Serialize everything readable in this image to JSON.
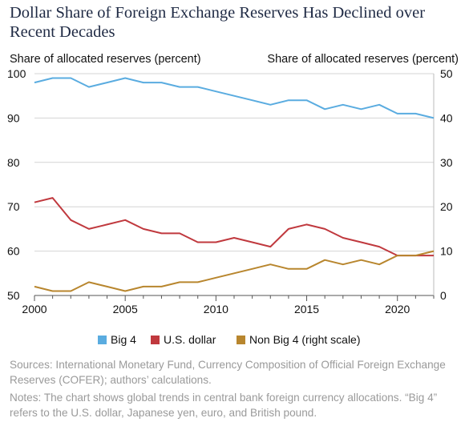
{
  "header": {
    "title": "Dollar Share of Foreign Exchange Reserves Has Declined over Recent Decades"
  },
  "chart_data": {
    "type": "line",
    "title": "Dollar Share of Foreign Exchange Reserves Has Declined over Recent Decades",
    "ylabel_left": "Share of allocated reserves (percent)",
    "ylabel_right": "Share of allocated reserves (percent)",
    "ylim_left": [
      50,
      100
    ],
    "ylim_right": [
      0,
      50
    ],
    "left_ticks": [
      "100",
      "90",
      "80",
      "70",
      "60",
      "50"
    ],
    "right_ticks": [
      "50",
      "40",
      "30",
      "20",
      "10",
      "0"
    ],
    "x_ticks": [
      "2000",
      "2005",
      "2010",
      "2015",
      "2020"
    ],
    "xlim": [
      2000,
      2022
    ],
    "grid": "horizontal",
    "legend_position": "bottom",
    "x": [
      2000,
      2001,
      2002,
      2003,
      2004,
      2005,
      2006,
      2007,
      2008,
      2009,
      2010,
      2011,
      2012,
      2013,
      2014,
      2015,
      2016,
      2017,
      2018,
      2019,
      2020,
      2021,
      2022
    ],
    "series": [
      {
        "name": "Big 4",
        "axis": "left",
        "color": "#5aace0",
        "values": [
          98,
          99,
          99,
          97,
          98,
          99,
          98,
          98,
          97,
          97,
          96,
          95,
          94,
          93,
          94,
          94,
          92,
          93,
          92,
          93,
          91,
          91,
          90
        ]
      },
      {
        "name": "U.S. dollar",
        "axis": "left",
        "color": "#c0393e",
        "values": [
          71,
          72,
          67,
          65,
          66,
          67,
          65,
          64,
          64,
          62,
          62,
          63,
          62,
          61,
          65,
          66,
          65,
          63,
          62,
          61,
          59,
          59,
          59
        ]
      },
      {
        "name": "Non Big 4 (right scale)",
        "axis": "right",
        "color": "#b8862e",
        "values": [
          2,
          1,
          1,
          3,
          2,
          1,
          2,
          2,
          3,
          3,
          4,
          5,
          6,
          7,
          6,
          6,
          8,
          7,
          8,
          7,
          9,
          9,
          10
        ]
      }
    ]
  },
  "footer": {
    "sources": "Sources: International Monetary Fund, Currency Composition of Official Foreign Exchange Reserves (COFER); authors’ calculations.",
    "notes": "Notes: The chart shows global trends in central bank foreign currency allocations. “Big 4” refers to the U.S. dollar, Japanese yen, euro, and British pound."
  }
}
